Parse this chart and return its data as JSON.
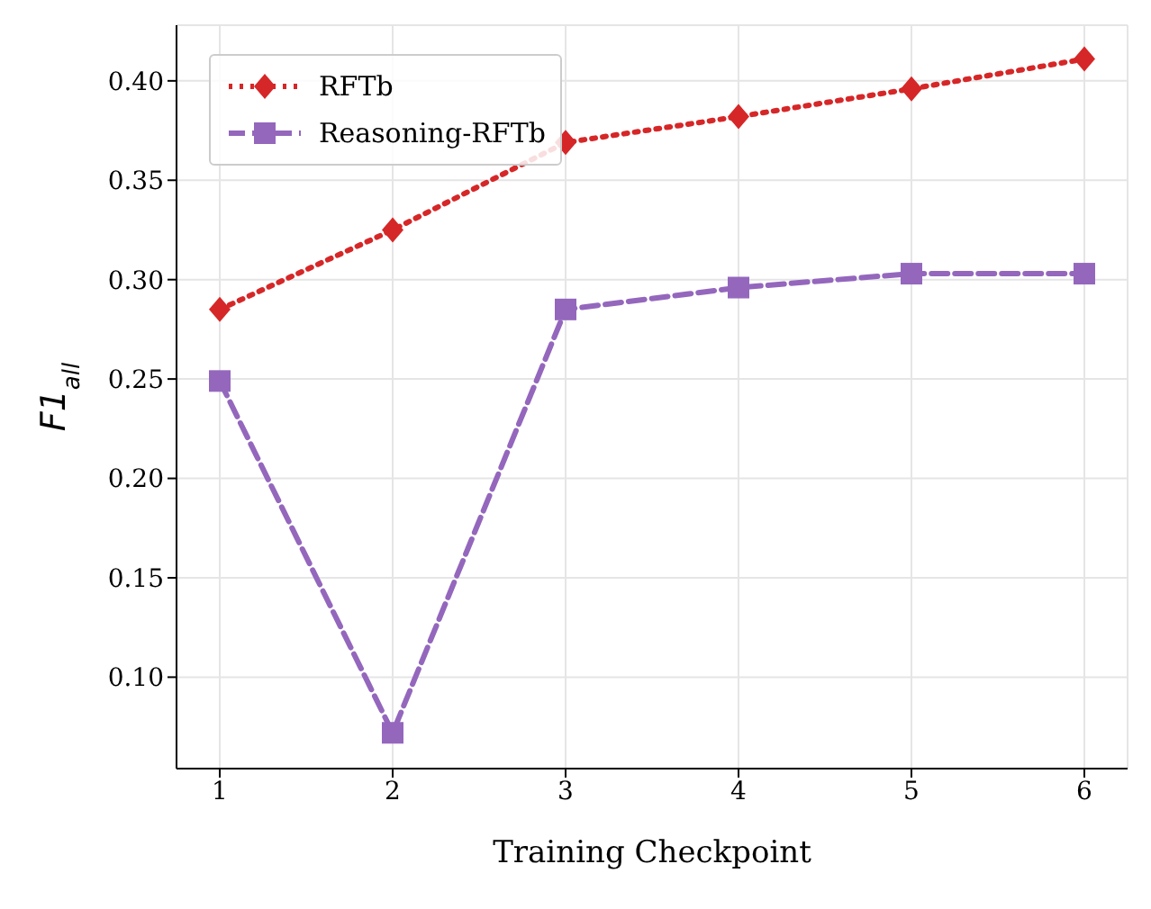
{
  "chart_data": {
    "type": "line",
    "xlabel": "Training Checkpoint",
    "ylabel": "F1$_{all}$",
    "x": [
      1,
      2,
      3,
      4,
      5,
      6
    ],
    "series": [
      {
        "name": "RFTb",
        "color": "#d62728",
        "values": [
          0.285,
          0.325,
          0.369,
          0.382,
          0.396,
          0.411
        ],
        "marker": "diamond",
        "line_style": "dotted"
      },
      {
        "name": "Reasoning-RFTb",
        "color": "#9467bd",
        "values": [
          0.249,
          0.072,
          0.285,
          0.296,
          0.303,
          0.303
        ],
        "marker": "square",
        "line_style": "dashed"
      }
    ],
    "xlim": [
      0.75,
      6.25
    ],
    "xticks": [
      1,
      2,
      3,
      4,
      5,
      6
    ],
    "ylim": [
      0.054,
      0.428
    ],
    "yticks": [
      {
        "value": 0.1,
        "label": "0.10"
      },
      {
        "value": 0.15,
        "label": "0.15"
      },
      {
        "value": 0.2,
        "label": "0.20"
      },
      {
        "value": 0.25,
        "label": "0.25"
      },
      {
        "value": 0.3,
        "label": "0.30"
      },
      {
        "value": 0.35,
        "label": "0.35"
      },
      {
        "value": 0.4,
        "label": "0.40"
      }
    ],
    "grid": true,
    "legend": "top left"
  }
}
